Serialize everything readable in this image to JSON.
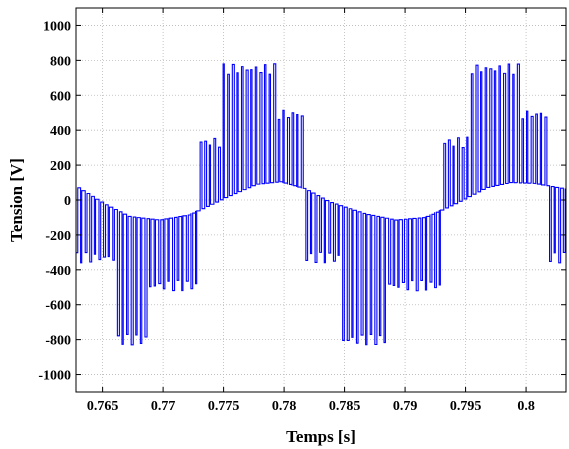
{
  "chart_data": {
    "type": "line",
    "title": "",
    "xlabel": "Temps [s]",
    "ylabel": "Tension [V]",
    "xlim": [
      0.7628,
      0.8033
    ],
    "ylim": [
      -1100,
      1100
    ],
    "xticks": [
      0.765,
      0.77,
      0.775,
      0.78,
      0.785,
      0.79,
      0.795,
      0.8
    ],
    "xtick_labels": [
      "0.765",
      "0.77",
      "0.775",
      "0.78",
      "0.785",
      "0.79",
      "0.795",
      "0.8"
    ],
    "yticks": [
      -1000,
      -800,
      -600,
      -400,
      -200,
      0,
      200,
      400,
      600,
      800,
      1000
    ],
    "ytick_labels": [
      "-1000",
      "-800",
      "-600",
      "-400",
      "-200",
      "0",
      "200",
      "400",
      "600",
      "800",
      "1000"
    ],
    "grid": true,
    "line_color": "#0000ff",
    "series": [
      {
        "style": "PWM voltage (fundamental ~50 Hz, period 0.02 s)",
        "fundamental_period": 0.02,
        "base_points": [
          [
            0.7628,
            70
          ],
          [
            0.765,
            -25
          ],
          [
            0.767,
            -95
          ],
          [
            0.7695,
            -115
          ],
          [
            0.772,
            -85
          ],
          [
            0.775,
            15
          ],
          [
            0.7775,
            90
          ],
          [
            0.7795,
            105
          ],
          [
            0.7815,
            65
          ],
          [
            0.7835,
            -10
          ],
          [
            0.7865,
            -80
          ],
          [
            0.789,
            -115
          ],
          [
            0.7915,
            -100
          ],
          [
            0.794,
            -20
          ],
          [
            0.7965,
            70
          ],
          [
            0.7985,
            100
          ],
          [
            0.8005,
            95
          ],
          [
            0.8033,
            60
          ]
        ],
        "pulse_levels": [
          [
            0.7628,
            0.7662,
            -300
          ],
          [
            0.7662,
            0.7688,
            -770
          ],
          [
            0.7688,
            0.7728,
            -460
          ],
          [
            0.7728,
            0.7748,
            300
          ],
          [
            0.7748,
            0.7795,
            720
          ],
          [
            0.7795,
            0.7815,
            460
          ],
          [
            0.7815,
            0.7848,
            -300
          ],
          [
            0.7848,
            0.7885,
            -770
          ],
          [
            0.7885,
            0.7932,
            -460
          ],
          [
            0.7932,
            0.7953,
            300
          ],
          [
            0.7953,
            0.7996,
            720
          ],
          [
            0.7996,
            0.8016,
            460
          ],
          [
            0.8016,
            0.8033,
            -300
          ]
        ],
        "peaks": {
          "max": 840,
          "min": -870
        }
      }
    ]
  }
}
